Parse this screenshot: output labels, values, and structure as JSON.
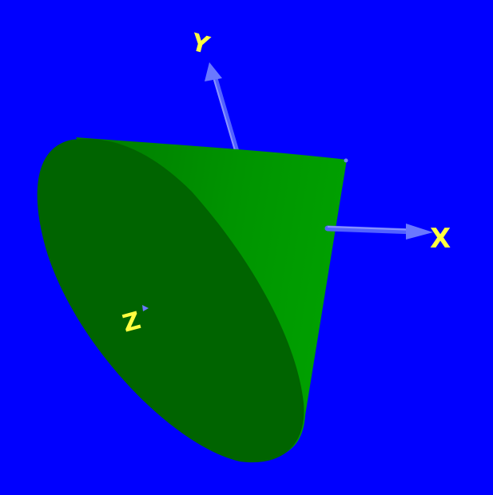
{
  "scene": {
    "background_color": "#0000ff",
    "object": "cone",
    "cone_base_color": "#006400",
    "cone_side_color": "#009000",
    "axis_color": "#4a5cff",
    "label_color": "#ffff40"
  },
  "axes": {
    "x_label": "X",
    "y_label": "Y",
    "z_label": "Z"
  }
}
